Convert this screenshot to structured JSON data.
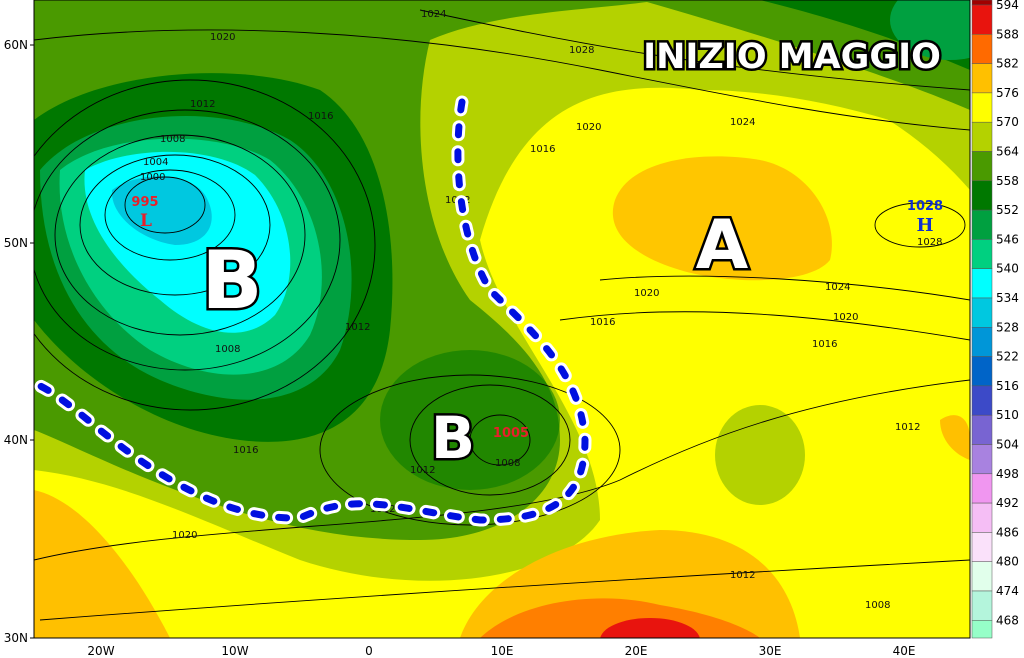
{
  "title": "INIZIO MAGGIO",
  "pressure_systems": [
    {
      "letter": "B",
      "kind": "low",
      "name": "atlantic-low"
    },
    {
      "letter": "B",
      "kind": "low",
      "name": "mediterranean-low"
    },
    {
      "letter": "A",
      "kind": "high",
      "name": "central-europe-high"
    }
  ],
  "centers": {
    "atlantic_low": {
      "value": "995",
      "symbol": "L",
      "color": "#e8202a"
    },
    "med_low": {
      "value": "1005",
      "color": "#e8202a"
    },
    "east_high": {
      "value": "1028",
      "symbol": "H",
      "color": "#1030d0"
    }
  },
  "isobar_labels": [
    "1020",
    "1012",
    "1008",
    "1004",
    "1000",
    "1016",
    "1024",
    "1028",
    "1020",
    "1016",
    "1012",
    "1024",
    "1020",
    "1016",
    "1008",
    "1012",
    "1016",
    "1020",
    "1012",
    "1024",
    "1008",
    "1028",
    "1016",
    "1012",
    "1012",
    "1008",
    "1020",
    "1012"
  ],
  "axes": {
    "lat": [
      "60N",
      "50N",
      "40N",
      "30N"
    ],
    "lon": [
      "20W",
      "10W",
      "0",
      "10E",
      "20E",
      "30E",
      "40E"
    ]
  },
  "colorbar": {
    "levels": [
      "594",
      "588",
      "582",
      "576",
      "570",
      "564",
      "558",
      "552",
      "546",
      "540",
      "534",
      "528",
      "522",
      "516",
      "510",
      "504",
      "498",
      "492",
      "486",
      "480",
      "474",
      "468"
    ],
    "colors": [
      "#a00000",
      "#e8140e",
      "#ff6a00",
      "#ffc000",
      "#ffff00",
      "#b4d200",
      "#4a9a00",
      "#007800",
      "#00a040",
      "#00d080",
      "#00ffff",
      "#00c8e0",
      "#0096d8",
      "#0064c8",
      "#3c4ac8",
      "#7864d2",
      "#a882e0",
      "#f096f0",
      "#f5bef5",
      "#fae1fa",
      "#e1ffeb",
      "#b4f5dc",
      "#96ffc8"
    ]
  },
  "trough_line_color": "#0010e0"
}
